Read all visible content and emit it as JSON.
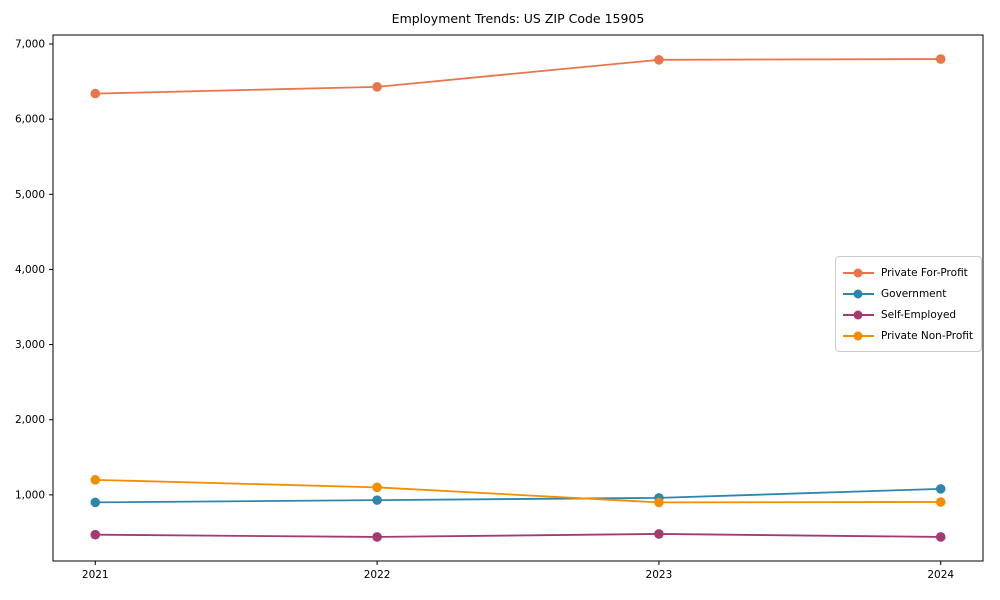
{
  "chart_data": {
    "type": "line",
    "title": "Employment Trends: US ZIP Code 15905",
    "xlabel": "",
    "ylabel": "",
    "categories": [
      "2021",
      "2022",
      "2023",
      "2024"
    ],
    "series": [
      {
        "name": "Private For-Profit",
        "color": "#E8764C",
        "values": [
          6340,
          6430,
          6790,
          6800
        ]
      },
      {
        "name": "Government",
        "color": "#2E86AB",
        "values": [
          900,
          930,
          960,
          1080
        ]
      },
      {
        "name": "Self-Employed",
        "color": "#A23B72",
        "values": [
          470,
          440,
          480,
          440
        ]
      },
      {
        "name": "Private Non-Profit",
        "color": "#F18F01",
        "values": [
          1200,
          1100,
          900,
          905
        ]
      }
    ],
    "ylim": [
      120,
      7120
    ],
    "yticks": [
      1000,
      2000,
      3000,
      4000,
      5000,
      6000,
      7000
    ],
    "ytick_labels": [
      "1,000",
      "2,000",
      "3,000",
      "4,000",
      "5,000",
      "6,000",
      "7,000"
    ],
    "grid": false,
    "legend_position": "center-right",
    "marker": "circle",
    "axis_color": "#000000",
    "legend_border_color": "#cccccc"
  }
}
